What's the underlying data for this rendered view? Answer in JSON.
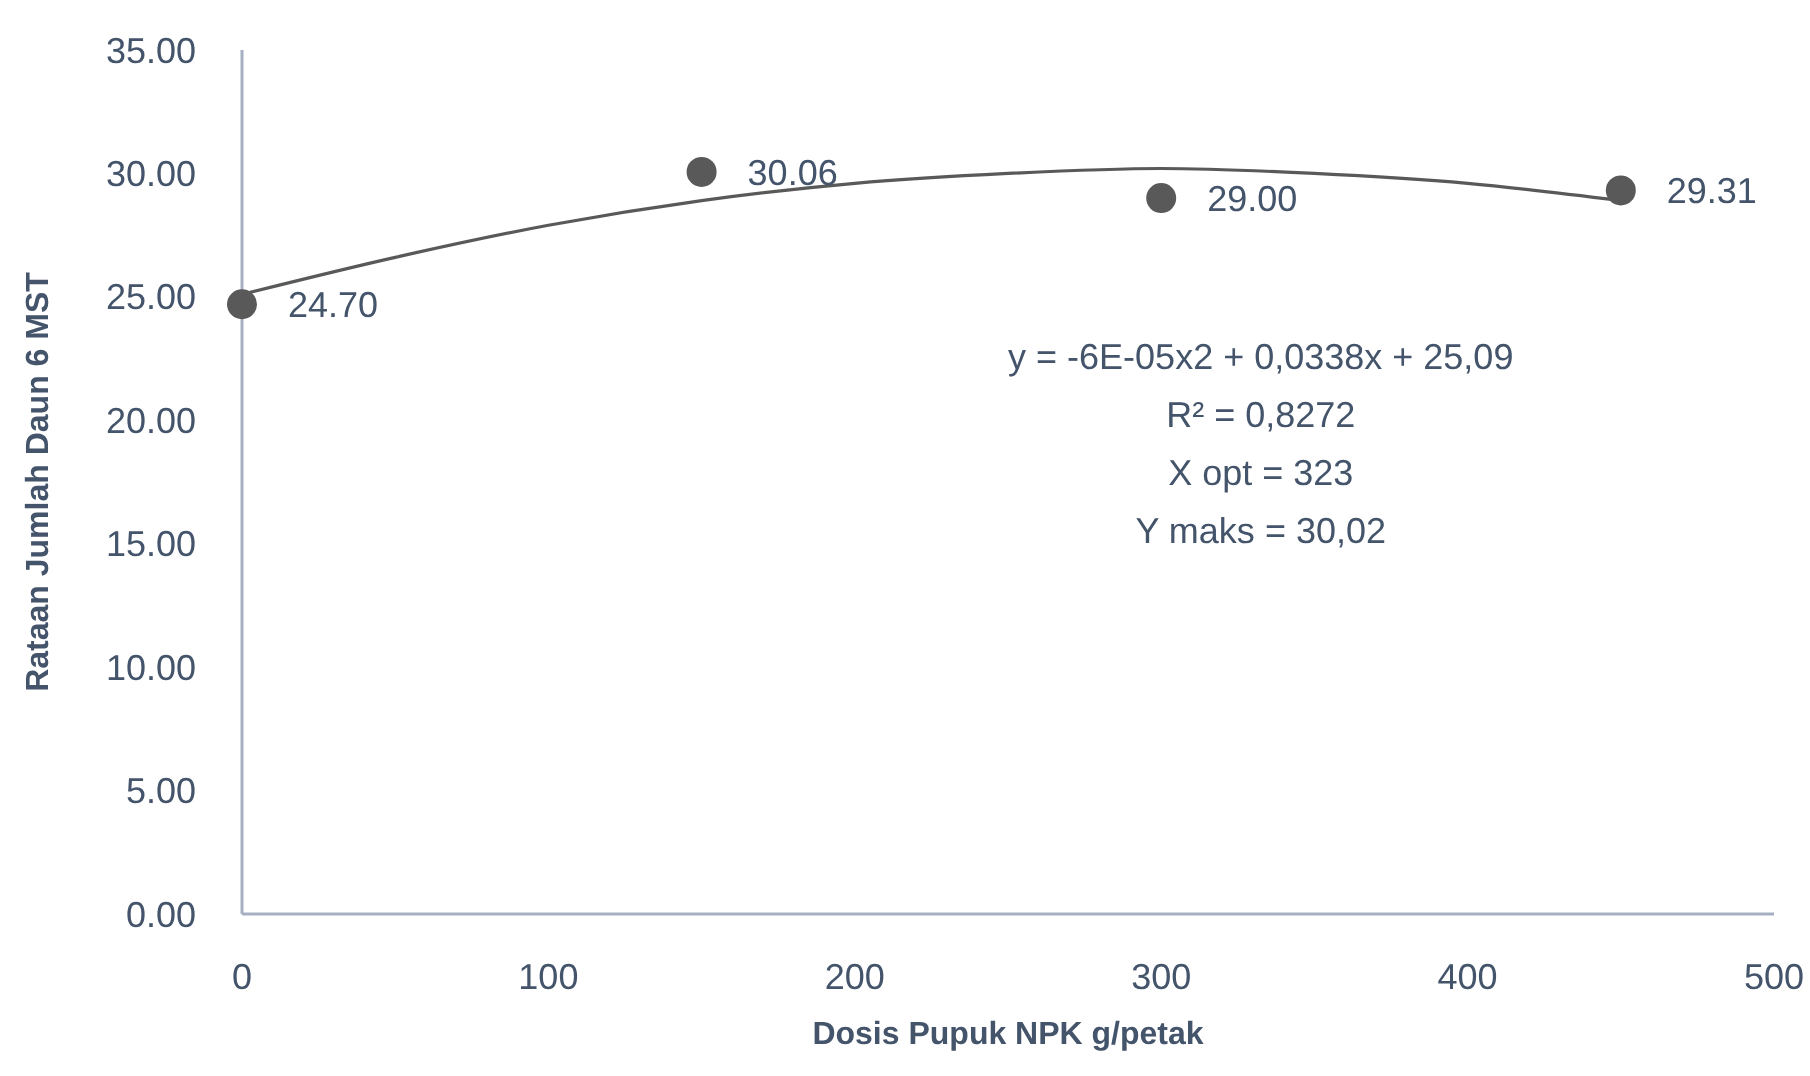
{
  "chart_data": {
    "type": "scatter",
    "xlabel": "Dosis Pupuk NPK g/petak",
    "ylabel": "Rataan Jumlah Daun 6 MST",
    "xlim": [
      0,
      500
    ],
    "xticks": [
      0,
      100,
      200,
      300,
      400,
      500
    ],
    "ylim": [
      0,
      35
    ],
    "yticks": [
      {
        "value": 0,
        "label": "0.00"
      },
      {
        "value": 5,
        "label": "5.00"
      },
      {
        "value": 10,
        "label": "10.00"
      },
      {
        "value": 15,
        "label": "15.00"
      },
      {
        "value": 20,
        "label": "20.00"
      },
      {
        "value": 25,
        "label": "25.00"
      },
      {
        "value": 30,
        "label": "30.00"
      },
      {
        "value": 35,
        "label": "35.00"
      }
    ],
    "series": [
      {
        "color": "#595959",
        "marker": "circle",
        "x": [
          0,
          150,
          300,
          450
        ],
        "values": [
          24.7,
          30.06,
          29.0,
          29.31
        ],
        "value_labels": [
          "24.70",
          "30.06",
          "29.00",
          "29.31"
        ]
      },
      {
        "type": "line",
        "color": "#595959",
        "marker": "none",
        "x": [
          0,
          50,
          100,
          150,
          200,
          250,
          300,
          350,
          400,
          450
        ],
        "values": [
          25.1,
          26.6,
          27.9,
          28.9,
          29.6,
          30.0,
          30.2,
          30.0,
          29.6,
          28.9
        ]
      }
    ],
    "annotations": [
      "y = -6E-05x2 + 0,0338x + 25,09",
      "R² = 0,8272",
      "X opt = 323",
      "Y maks = 30,02"
    ]
  }
}
